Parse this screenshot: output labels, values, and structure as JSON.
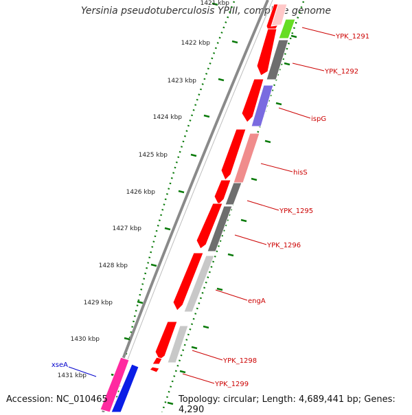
{
  "title": "Yersinia pseudotuberculosis YPIII, complete genome",
  "accession": "Accession: NC_010465",
  "topology": "Topology: circular; Length: 4,689,441 bp; Genes: 4,290",
  "ruler": {
    "ticks": [
      {
        "label": "1421 kbp",
        "pos": 1421
      },
      {
        "label": "1422 kbp",
        "pos": 1422
      },
      {
        "label": "1423 kbp",
        "pos": 1423
      },
      {
        "label": "1424 kbp",
        "pos": 1424
      },
      {
        "label": "1425 kbp",
        "pos": 1425
      },
      {
        "label": "1426 kbp",
        "pos": 1426
      },
      {
        "label": "1427 kbp",
        "pos": 1427
      },
      {
        "label": "1428 kbp",
        "pos": 1428
      },
      {
        "label": "1429 kbp",
        "pos": 1429
      },
      {
        "label": "1430 kbp",
        "pos": 1430
      },
      {
        "label": "1431 kbp",
        "pos": 1431
      }
    ]
  },
  "genes": [
    {
      "label": "YPK_1291",
      "color": "#cc0000"
    },
    {
      "label": "YPK_1292",
      "color": "#cc0000"
    },
    {
      "label": "ispG",
      "color": "#cc0000"
    },
    {
      "label": "hisS",
      "color": "#cc0000"
    },
    {
      "label": "YPK_1295",
      "color": "#cc0000"
    },
    {
      "label": "YPK_1296",
      "color": "#cc0000"
    },
    {
      "label": "engA",
      "color": "#cc0000"
    },
    {
      "label": "YPK_1298",
      "color": "#cc0000"
    },
    {
      "label": "YPK_1299",
      "color": "#cc0000"
    },
    {
      "label": "xseA",
      "color": "#0000cc"
    }
  ],
  "colors": {
    "cds": "#ff0000",
    "tick": "#0a7a0a",
    "backbone": "#888888",
    "gray_dark": "#6e6e6e",
    "gray_light": "#c8c8c8",
    "purple": "#7a6be0",
    "pink": "#f08c8c",
    "magenta": "#ff2aa0",
    "blue": "#0a1ee6",
    "green": "#66dd22"
  }
}
